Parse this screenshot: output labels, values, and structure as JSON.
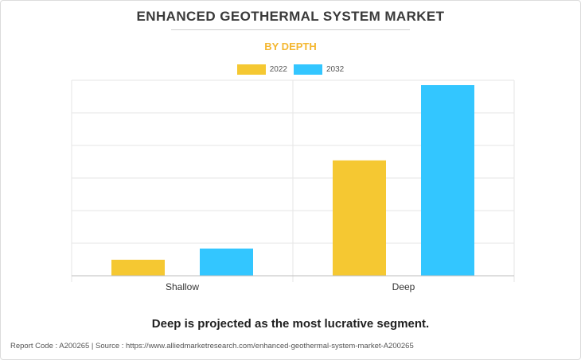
{
  "header": {
    "title": "ENHANCED GEOTHERMAL SYSTEM MARKET",
    "subtitle": "BY DEPTH"
  },
  "chart_data": {
    "type": "bar",
    "categories": [
      "Shallow",
      "Deep"
    ],
    "series": [
      {
        "name": "2022",
        "color": "#f5c832",
        "values": [
          0.5,
          3.6
        ]
      },
      {
        "name": "2032",
        "color": "#33c6ff",
        "values": [
          0.85,
          5.95
        ]
      }
    ],
    "ylim": [
      0,
      6.1
    ],
    "y_gridlines": 6,
    "y_tick_labels_shown": false,
    "grid": true,
    "legend": "top-center"
  },
  "takeaway": "Deep is projected as the most lucrative segment.",
  "footer": {
    "text": "Report Code : A200265  |  Source : https://www.alliedmarketresearch.com/enhanced-geothermal-system-market-A200265"
  }
}
